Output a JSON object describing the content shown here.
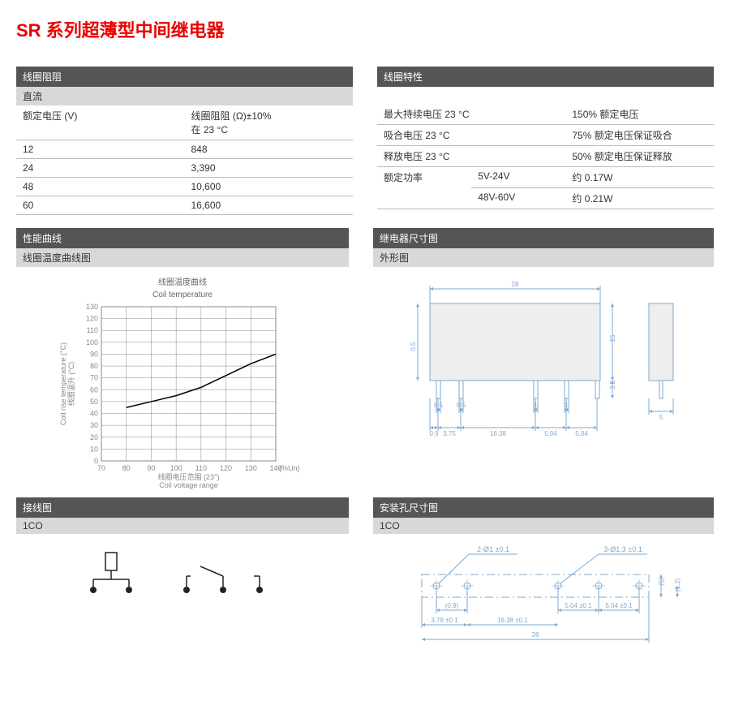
{
  "title": "SR 系列超薄型中间继电器",
  "coilRes": {
    "header": "线圈阻阻",
    "sub": "直流",
    "colHdr1": "额定电压 (V)",
    "colHdr2": "线圈阻阻 (Ω)±10%\n在 23 °C",
    "rows": [
      {
        "v": "12",
        "r": "848"
      },
      {
        "v": "24",
        "r": "3,390"
      },
      {
        "v": "48",
        "r": "10,600"
      },
      {
        "v": "60",
        "r": "16,600"
      }
    ]
  },
  "coilChar": {
    "header": "线圈特性",
    "rows": [
      {
        "c1": "最大持续电压 23 °C",
        "c2": "150% 额定电压"
      },
      {
        "c1": "吸合电压 23 °C",
        "c2": "75% 额定电压保证吸合"
      },
      {
        "c1": "释放电压 23 °C",
        "c2": "50% 额定电压保证释放"
      }
    ],
    "power": {
      "label": "额定功率",
      "rows": [
        {
          "range": "5V-24V",
          "val": "约 0.17W"
        },
        {
          "range": "48V-60V",
          "val": "约 0.21W"
        }
      ]
    }
  },
  "perf": {
    "header": "性能曲线",
    "sub": "线圈温度曲线图"
  },
  "dim": {
    "header": "继电器尺寸图",
    "sub": "外形图"
  },
  "wiring": {
    "header": "接线图",
    "sub": "1CO"
  },
  "mount": {
    "header": "安装孔尺寸图",
    "sub": "1CO"
  },
  "chart": {
    "titleCn": "线圈温度曲线",
    "titleEn": "Coil temperature",
    "yLabelCn": "线圈温升 (°C)",
    "yLabelEn": "Coil rise temperature (°C)",
    "xLabelCn": "线圈电压范围 (23°)",
    "xLabelEn": "Coil voltage range",
    "xUnit": "(%Un)",
    "xTicks": [
      70,
      80,
      90,
      100,
      110,
      120,
      130,
      140
    ],
    "yTicks": [
      0,
      10,
      20,
      30,
      40,
      50,
      60,
      70,
      80,
      90,
      100,
      110,
      120,
      130
    ],
    "gridColor": "#888",
    "lineColor": "#000",
    "points": [
      [
        80,
        45
      ],
      [
        90,
        50
      ],
      [
        100,
        55
      ],
      [
        110,
        62
      ],
      [
        120,
        72
      ],
      [
        130,
        82
      ],
      [
        140,
        90
      ]
    ]
  },
  "relayDwg": {
    "lineColor": "#7fa8cf",
    "textColor": "#7fa8cf",
    "bodyFill": "#eeeeee",
    "w28": "28",
    "h15": "15",
    "h35": "3.5",
    "w5": "5",
    "d05a": "0.5",
    "d05b": "0.5",
    "d05c": "0.5",
    "d1a": "1",
    "d1b": "1",
    "d09": "0.9",
    "d375": "3.75",
    "d1638": "16.38",
    "d504a": "5.04",
    "d504b": "5.04"
  },
  "mountDwg": {
    "lineColor": "#7fa8cf",
    "textColor": "#7fa8cf",
    "lbl2": "2-Ø1 ±0.1",
    "lbl3": "3-Ø1.3 ±0.1",
    "d09": "(0.9)",
    "d504a": "5.04 ±0.1",
    "d504b": "5.04 ±0.1",
    "d378": "3.78 ±0.1",
    "d1638": "16.38 ±0.1",
    "w28": "28",
    "h5": "(5)",
    "h12": "(1.2)"
  }
}
